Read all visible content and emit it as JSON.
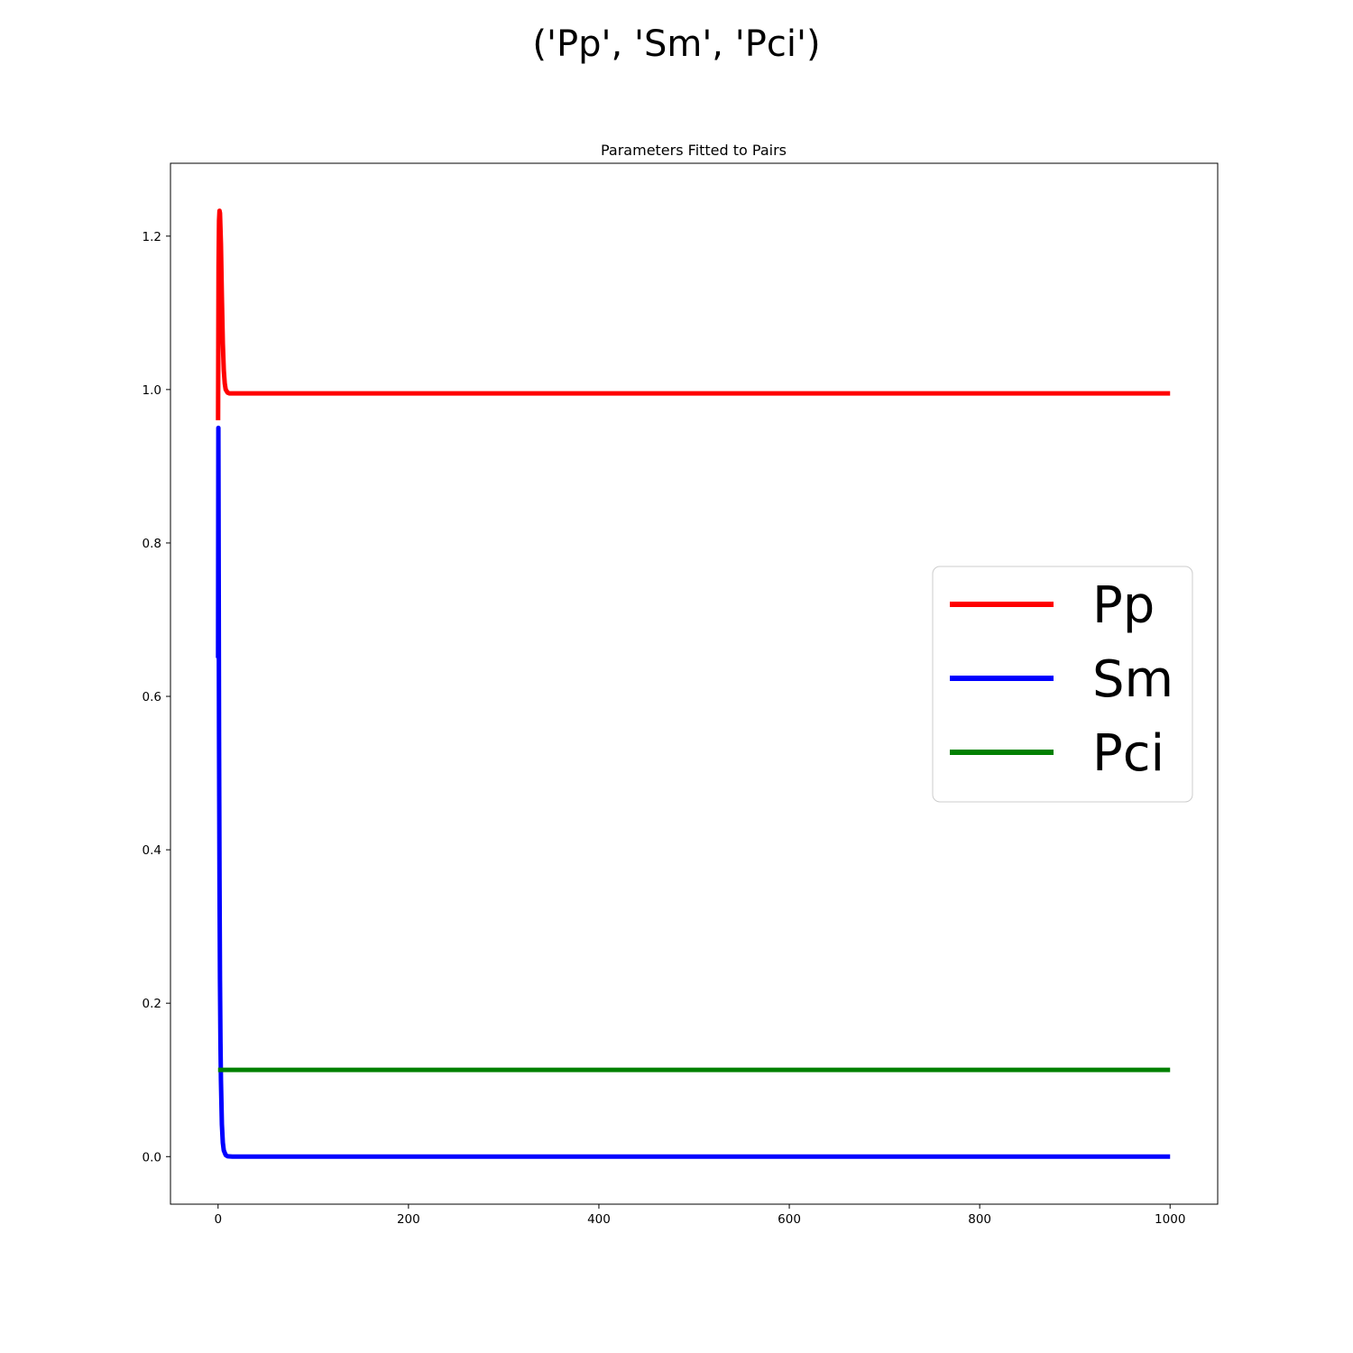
{
  "suptitle": "('Pp', 'Sm', 'Pci')",
  "chart_data": {
    "type": "line",
    "title": "Parameters Fitted to Pairs",
    "xlabel": "",
    "ylabel": "",
    "xlim": [
      -50,
      1050
    ],
    "ylim": [
      -0.062,
      1.295
    ],
    "xticks": [
      0,
      200,
      400,
      600,
      800,
      1000
    ],
    "xtick_labels": [
      "0",
      "200",
      "400",
      "600",
      "800",
      "1000"
    ],
    "yticks": [
      0.0,
      0.2,
      0.4,
      0.6,
      0.8,
      1.0,
      1.2
    ],
    "ytick_labels": [
      "0.0",
      "0.2",
      "0.4",
      "0.6",
      "0.8",
      "1.0",
      "1.2"
    ],
    "grid": false,
    "legend_position": "center-right",
    "series": [
      {
        "name": "Pp",
        "color": "#ff0000",
        "x": [
          0,
          0.5,
          1,
          1.5,
          2,
          3,
          4,
          5,
          6,
          7,
          8,
          10,
          12,
          15,
          20,
          50,
          100,
          200,
          300,
          400,
          500,
          600,
          700,
          800,
          900,
          1000
        ],
        "y": [
          0.96,
          1.16,
          1.22,
          1.233,
          1.23,
          1.19,
          1.12,
          1.06,
          1.025,
          1.008,
          1.0,
          0.996,
          0.995,
          0.995,
          0.995,
          0.995,
          0.995,
          0.995,
          0.995,
          0.995,
          0.995,
          0.995,
          0.995,
          0.995,
          0.995,
          0.995
        ]
      },
      {
        "name": "Sm",
        "color": "#0000ff",
        "x": [
          0,
          0.3,
          0.6,
          1,
          1.5,
          2,
          2.5,
          3,
          4,
          5,
          6,
          8,
          10,
          15,
          20,
          50,
          100,
          200,
          300,
          400,
          500,
          600,
          700,
          800,
          900,
          1000
        ],
        "y": [
          0.65,
          0.95,
          0.78,
          0.55,
          0.36,
          0.23,
          0.15,
          0.1,
          0.042,
          0.018,
          0.008,
          0.002,
          0.0005,
          0.0,
          0.0,
          0.0,
          0.0,
          0.0,
          0.0,
          0.0,
          0.0,
          0.0,
          0.0,
          0.0,
          0.0,
          0.0
        ]
      },
      {
        "name": "Pci",
        "color": "#008000",
        "x": [
          0,
          100,
          200,
          300,
          400,
          500,
          600,
          700,
          800,
          900,
          1000
        ],
        "y": [
          0.113,
          0.113,
          0.113,
          0.113,
          0.113,
          0.113,
          0.113,
          0.113,
          0.113,
          0.113,
          0.113
        ]
      }
    ]
  }
}
